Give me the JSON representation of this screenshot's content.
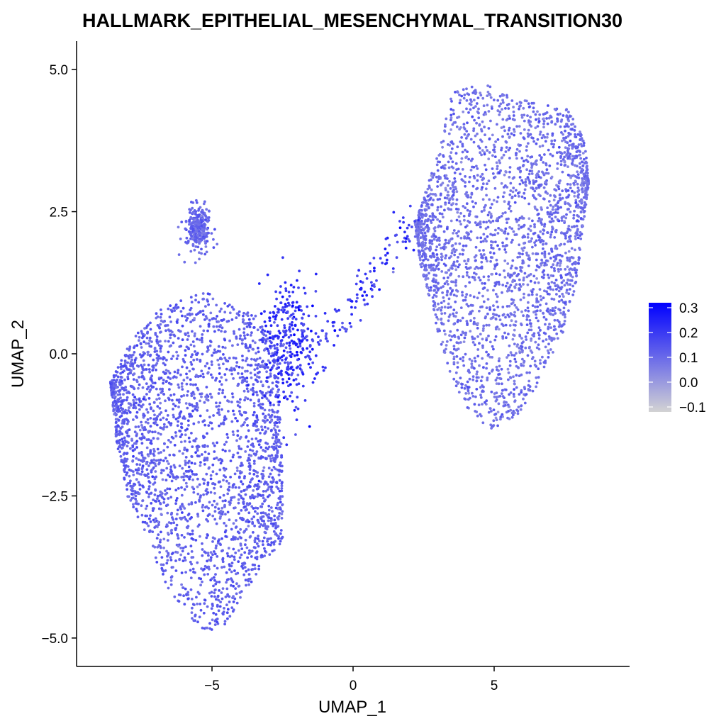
{
  "chart_data": {
    "type": "scatter",
    "title": "HALLMARK_EPITHELIAL_MESENCHYMAL_TRANSITION30",
    "xlabel": "UMAP_1",
    "ylabel": "UMAP_2",
    "xlim": [
      -9.8,
      9.8
    ],
    "ylim": [
      -5.5,
      5.5
    ],
    "x_ticks": [
      -5,
      0,
      5
    ],
    "x_tick_labels": [
      "−5",
      "0",
      "5"
    ],
    "y_ticks": [
      -5,
      -2.5,
      0,
      2.5,
      5
    ],
    "y_tick_labels": [
      "−5.0",
      "−2.5",
      "0.0",
      "2.5",
      "5.0"
    ],
    "grid": false,
    "color_scale": {
      "low_color": "#d3d3d3",
      "high_color": "#0000ff",
      "min": -0.12,
      "max": 0.32,
      "ticks": [
        0.3,
        0.2,
        0.1,
        0.0,
        -0.1
      ],
      "tick_labels": [
        "0.3",
        "0.2",
        "0.1",
        "0.0",
        "−0.1"
      ],
      "legend_position": "right"
    },
    "clusters": [
      {
        "cells": 2600,
        "outline_upper": [
          [
            -8.6,
            -0.5
          ],
          [
            -7.8,
            0.3
          ],
          [
            -6.8,
            0.8
          ],
          [
            -5.8,
            1.0
          ],
          [
            -5.0,
            1.1
          ],
          [
            -4.2,
            0.9
          ],
          [
            -3.5,
            0.7
          ],
          [
            -3.0,
            0.5
          ],
          [
            -2.7,
            0.0
          ],
          [
            -2.6,
            -1.0
          ],
          [
            -2.5,
            -2.0
          ],
          [
            -2.6,
            -3.0
          ],
          [
            -2.7,
            -3.4
          ]
        ],
        "outline_lower": [
          [
            -8.6,
            -0.5
          ],
          [
            -8.4,
            -1.5
          ],
          [
            -8.0,
            -2.5
          ],
          [
            -7.3,
            -3.3
          ],
          [
            -6.6,
            -4.1
          ],
          [
            -6.0,
            -4.5
          ],
          [
            -5.3,
            -4.9
          ],
          [
            -4.6,
            -4.8
          ],
          [
            -3.8,
            -4.2
          ],
          [
            -3.2,
            -3.7
          ],
          [
            -2.7,
            -3.4
          ]
        ],
        "value_mean": 0.12,
        "value_sd": 0.03
      },
      {
        "cells": 2600,
        "outline_upper": [
          [
            2.2,
            2.3
          ],
          [
            3.0,
            3.5
          ],
          [
            3.5,
            4.6
          ],
          [
            4.3,
            4.75
          ],
          [
            5.0,
            4.7
          ],
          [
            5.7,
            4.5
          ],
          [
            6.6,
            4.4
          ],
          [
            7.6,
            4.3
          ],
          [
            8.2,
            3.8
          ],
          [
            8.35,
            3.0
          ]
        ],
        "outline_lower": [
          [
            2.2,
            2.3
          ],
          [
            2.4,
            1.5
          ],
          [
            2.8,
            0.8
          ],
          [
            3.2,
            0.0
          ],
          [
            3.7,
            -0.7
          ],
          [
            4.4,
            -1.2
          ],
          [
            5.0,
            -1.35
          ],
          [
            5.8,
            -1.1
          ],
          [
            6.6,
            -0.5
          ],
          [
            7.4,
            0.3
          ],
          [
            7.9,
            1.2
          ],
          [
            8.35,
            3.0
          ]
        ],
        "value_mean": 0.09,
        "value_sd": 0.03
      },
      {
        "cells": 260,
        "center": [
          -5.5,
          2.2
        ],
        "spread": [
          0.22,
          0.2
        ],
        "value_mean": 0.11,
        "value_sd": 0.03
      },
      {
        "cells": 320,
        "center": [
          -2.3,
          0.2
        ],
        "spread": [
          0.45,
          0.55
        ],
        "value_mean": 0.21,
        "value_sd": 0.05
      },
      {
        "cells": 120,
        "start": [
          -1.4,
          0.0
        ],
        "end": [
          2.2,
          2.4
        ],
        "width": 0.22,
        "value_mean": 0.2,
        "value_sd": 0.05
      }
    ]
  }
}
